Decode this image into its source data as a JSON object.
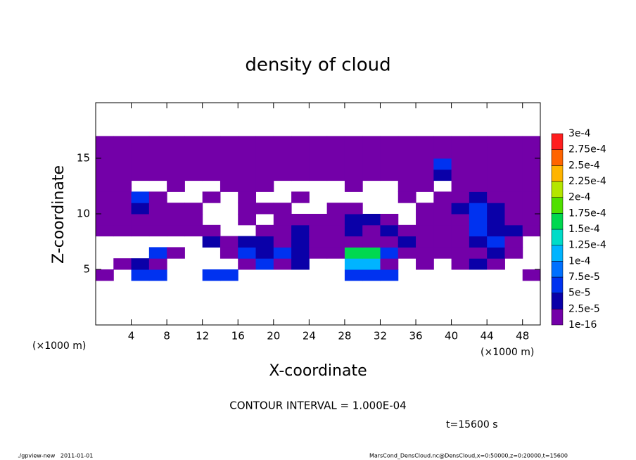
{
  "chart_data": {
    "type": "contour",
    "title": "density of cloud",
    "xlabel": "X-coordinate",
    "ylabel": "Z-coordinate",
    "x_unit": "(×1000 m)",
    "y_unit": "(×1000 m)",
    "contour_note": "CONTOUR INTERVAL = 1.000E-04",
    "time_label": "t=15600 s",
    "footer_left": "./gpview-new   2011-01-01",
    "footer_right": "MarsCond_DensCloud.nc@DensCloud,x=0:50000,z=0:20000,t=15600",
    "xlim": [
      0,
      50
    ],
    "ylim": [
      0,
      20
    ],
    "xticks": [
      4,
      8,
      12,
      16,
      20,
      24,
      28,
      32,
      36,
      40,
      44,
      48
    ],
    "yticks": [
      5,
      10,
      15
    ],
    "grid": false,
    "x_bins": [
      0,
      2,
      4,
      6,
      8,
      10,
      12,
      14,
      16,
      18,
      20,
      22,
      24,
      26,
      28,
      30,
      32,
      34,
      36,
      38,
      40,
      42,
      44,
      46,
      48,
      50
    ],
    "z_bins": [
      4,
      5,
      6,
      7,
      8,
      9,
      10,
      11,
      12,
      13,
      14,
      15,
      16,
      17
    ],
    "values": [
      [
        1e-16,
        null,
        5e-05,
        5e-05,
        null,
        null,
        5e-05,
        5e-05,
        null,
        null,
        null,
        null,
        null,
        null,
        5e-05,
        5e-05,
        5e-05,
        null,
        null,
        null,
        null,
        null,
        null,
        null,
        1e-16
      ],
      [
        null,
        1e-16,
        2.5e-05,
        1e-16,
        null,
        null,
        null,
        null,
        1e-16,
        5e-05,
        1e-16,
        2.5e-05,
        null,
        null,
        0.0001,
        0.0001,
        1e-16,
        null,
        1e-16,
        null,
        1e-16,
        2.5e-05,
        1e-16,
        null,
        null
      ],
      [
        null,
        null,
        null,
        5e-05,
        1e-16,
        null,
        null,
        1e-16,
        5e-05,
        2.5e-05,
        5e-05,
        2.5e-05,
        1e-16,
        1e-16,
        0.00015,
        0.00015,
        5e-05,
        1e-16,
        1e-16,
        1e-16,
        1e-16,
        1e-16,
        2.5e-05,
        1e-16,
        null
      ],
      [
        null,
        null,
        null,
        null,
        null,
        null,
        2.5e-05,
        1e-16,
        2.5e-05,
        2.5e-05,
        1e-16,
        2.5e-05,
        1e-16,
        1e-16,
        1e-16,
        1e-16,
        1e-16,
        2.5e-05,
        1e-16,
        1e-16,
        1e-16,
        2.5e-05,
        5e-05,
        1e-16,
        null
      ],
      [
        1e-16,
        1e-16,
        1e-16,
        1e-16,
        1e-16,
        1e-16,
        1e-16,
        null,
        null,
        1e-16,
        1e-16,
        2.5e-05,
        1e-16,
        1e-16,
        2.5e-05,
        1e-16,
        2.5e-05,
        1e-16,
        1e-16,
        1e-16,
        1e-16,
        5e-05,
        2.5e-05,
        2.5e-05,
        1e-16
      ],
      [
        1e-16,
        1e-16,
        1e-16,
        1e-16,
        1e-16,
        1e-16,
        null,
        null,
        1e-16,
        null,
        1e-16,
        1e-16,
        1e-16,
        1e-16,
        2.5e-05,
        2.5e-05,
        1e-16,
        null,
        1e-16,
        1e-16,
        1e-16,
        5e-05,
        2.5e-05,
        1e-16,
        1e-16
      ],
      [
        1e-16,
        1e-16,
        2.5e-05,
        1e-16,
        1e-16,
        1e-16,
        null,
        null,
        1e-16,
        1e-16,
        1e-16,
        null,
        null,
        1e-16,
        1e-16,
        null,
        null,
        null,
        1e-16,
        1e-16,
        2.5e-05,
        5e-05,
        2.5e-05,
        1e-16,
        1e-16
      ],
      [
        1e-16,
        1e-16,
        5e-05,
        1e-16,
        null,
        null,
        1e-16,
        null,
        1e-16,
        null,
        null,
        1e-16,
        null,
        null,
        null,
        null,
        null,
        1e-16,
        null,
        1e-16,
        1e-16,
        2.5e-05,
        1e-16,
        1e-16,
        1e-16
      ],
      [
        1e-16,
        1e-16,
        null,
        null,
        1e-16,
        null,
        null,
        1e-16,
        1e-16,
        1e-16,
        null,
        null,
        null,
        null,
        1e-16,
        null,
        null,
        1e-16,
        1e-16,
        null,
        1e-16,
        1e-16,
        1e-16,
        1e-16,
        1e-16
      ],
      [
        1e-16,
        1e-16,
        1e-16,
        1e-16,
        1e-16,
        1e-16,
        1e-16,
        1e-16,
        1e-16,
        1e-16,
        1e-16,
        1e-16,
        1e-16,
        1e-16,
        1e-16,
        1e-16,
        1e-16,
        1e-16,
        1e-16,
        2.5e-05,
        1e-16,
        1e-16,
        1e-16,
        1e-16,
        1e-16
      ],
      [
        1e-16,
        1e-16,
        1e-16,
        1e-16,
        1e-16,
        1e-16,
        1e-16,
        1e-16,
        1e-16,
        1e-16,
        1e-16,
        1e-16,
        1e-16,
        1e-16,
        1e-16,
        1e-16,
        1e-16,
        1e-16,
        1e-16,
        5e-05,
        1e-16,
        1e-16,
        1e-16,
        1e-16,
        1e-16
      ],
      [
        1e-16,
        1e-16,
        1e-16,
        1e-16,
        1e-16,
        1e-16,
        1e-16,
        1e-16,
        1e-16,
        1e-16,
        1e-16,
        1e-16,
        1e-16,
        1e-16,
        1e-16,
        1e-16,
        1e-16,
        1e-16,
        1e-16,
        1e-16,
        1e-16,
        1e-16,
        1e-16,
        1e-16,
        1e-16
      ],
      [
        1e-16,
        1e-16,
        1e-16,
        1e-16,
        1e-16,
        1e-16,
        1e-16,
        1e-16,
        1e-16,
        1e-16,
        1e-16,
        1e-16,
        1e-16,
        1e-16,
        1e-16,
        1e-16,
        1e-16,
        1e-16,
        1e-16,
        1e-16,
        1e-16,
        1e-16,
        1e-16,
        1e-16,
        1e-16
      ]
    ],
    "levels": [
      {
        "value": 1e-16,
        "label": "1e-16"
      },
      {
        "value": 2.5e-05,
        "label": "2.5e-5"
      },
      {
        "value": 5e-05,
        "label": "5e-5"
      },
      {
        "value": 7.5e-05,
        "label": "7.5e-5"
      },
      {
        "value": 0.0001,
        "label": "1e-4"
      },
      {
        "value": 0.000125,
        "label": "1.25e-4"
      },
      {
        "value": 0.00015,
        "label": "1.5e-4"
      },
      {
        "value": 0.000175,
        "label": "1.75e-4"
      },
      {
        "value": 0.0002,
        "label": "2e-4"
      },
      {
        "value": 0.000225,
        "label": "2.25e-4"
      },
      {
        "value": 0.00025,
        "label": "2.5e-4"
      },
      {
        "value": 0.000275,
        "label": "2.75e-4"
      },
      {
        "value": 0.0003,
        "label": "3e-4"
      }
    ],
    "colors": [
      "#7300a8",
      "#0a00a8",
      "#0032f0",
      "#0070ff",
      "#00b4ff",
      "#00dcc8",
      "#00d850",
      "#50e000",
      "#b4e600",
      "#ffb400",
      "#ff6400",
      "#ff1e1e",
      "#ff8c8c"
    ]
  }
}
